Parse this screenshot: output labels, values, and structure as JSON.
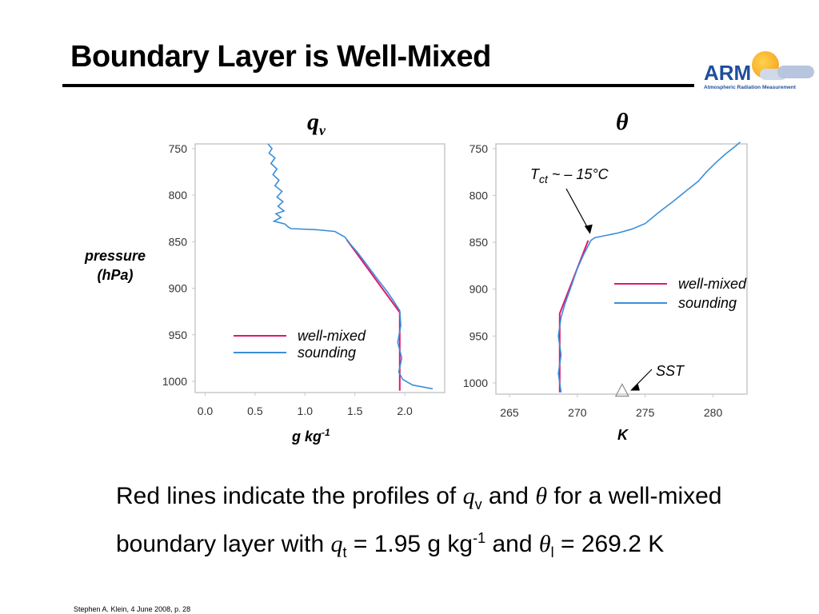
{
  "slide": {
    "title": "Boundary Layer is Well-Mixed",
    "logo_text": "ARM",
    "logo_subtitle": "Atmospheric Radiation Measurement",
    "ylabel_line1": "pressure",
    "ylabel_line2": "(hPa)",
    "caption": {
      "t1": "Red lines indicate the profiles of ",
      "qv": "q",
      "qv_sub": "v",
      "t2": " and ",
      "theta": "θ",
      "t3": " for a well-mixed boundary layer with ",
      "qt": "q",
      "qt_sub": "t",
      "t4": " = 1.95 g kg",
      "sup": "-1",
      "t5": " and ",
      "thetal": "θ",
      "thetal_sub": "l",
      "t6": " = 269.2 K"
    },
    "footer": "Stephen A. Klein, 4 June 2008, p. 28",
    "colors": {
      "well_mixed": "#e0186c",
      "sounding": "#3b8fd9",
      "frame": "#c8c8c8"
    }
  },
  "chart_data": [
    {
      "type": "line",
      "title": "q",
      "title_sub": "v",
      "xlabel": "g kg",
      "xlabel_sup": "-1",
      "ylabel": "pressure (hPa)",
      "xlim": [
        -0.1,
        2.4
      ],
      "ylim": [
        1012,
        745
      ],
      "y_inverted": true,
      "xticks": [
        "0.0",
        "0.5",
        "1.0",
        "1.5",
        "2.0"
      ],
      "xtick_values": [
        0.0,
        0.5,
        1.0,
        1.5,
        2.0
      ],
      "yticks": [
        "750",
        "800",
        "850",
        "900",
        "950",
        "1000"
      ],
      "ytick_values": [
        750,
        800,
        850,
        900,
        950,
        1000
      ],
      "legend": {
        "position": "lower-center",
        "entries": [
          "well-mixed",
          "sounding"
        ]
      },
      "series": [
        {
          "name": "well-mixed",
          "points": [
            [
              1.42,
              848
            ],
            [
              1.95,
              926
            ],
            [
              1.95,
              1010
            ]
          ]
        },
        {
          "name": "sounding",
          "points": [
            [
              0.63,
              745
            ],
            [
              0.67,
              750
            ],
            [
              0.64,
              755
            ],
            [
              0.7,
              760
            ],
            [
              0.66,
              766
            ],
            [
              0.72,
              772
            ],
            [
              0.68,
              778
            ],
            [
              0.74,
              784
            ],
            [
              0.7,
              790
            ],
            [
              0.77,
              796
            ],
            [
              0.72,
              802
            ],
            [
              0.78,
              807
            ],
            [
              0.73,
              812
            ],
            [
              0.79,
              817
            ],
            [
              0.71,
              820
            ],
            [
              0.76,
              824
            ],
            [
              0.69,
              828
            ],
            [
              0.8,
              831
            ],
            [
              0.83,
              834
            ],
            [
              0.86,
              836
            ],
            [
              1.1,
              837
            ],
            [
              1.3,
              839
            ],
            [
              1.4,
              845
            ],
            [
              1.45,
              852
            ],
            [
              1.53,
              862
            ],
            [
              1.6,
              872
            ],
            [
              1.67,
              882
            ],
            [
              1.74,
              892
            ],
            [
              1.82,
              903
            ],
            [
              1.89,
              914
            ],
            [
              1.95,
              924
            ],
            [
              1.96,
              940
            ],
            [
              1.93,
              958
            ],
            [
              1.97,
              975
            ],
            [
              1.94,
              990
            ],
            [
              1.98,
              998
            ],
            [
              2.08,
              1004
            ],
            [
              2.28,
              1008
            ]
          ]
        }
      ]
    },
    {
      "type": "line",
      "title": "θ",
      "xlabel": "K",
      "xlim": [
        264,
        282.5
      ],
      "ylim": [
        1012,
        745
      ],
      "y_inverted": true,
      "xticks": [
        "265",
        "270",
        "275",
        "280"
      ],
      "xtick_values": [
        265,
        270,
        275,
        280
      ],
      "yticks": [
        "750",
        "800",
        "850",
        "900",
        "950",
        "1000"
      ],
      "ytick_values": [
        750,
        800,
        850,
        900,
        950,
        1000
      ],
      "legend": {
        "position": "center-right",
        "entries": [
          "well-mixed",
          "sounding"
        ]
      },
      "annotations": [
        {
          "text": "T",
          "sub": "ct",
          "rest": " ~ – 15°C",
          "x": 271.0,
          "y": 848
        },
        {
          "text": "SST",
          "x": 273.3,
          "y": 1009
        }
      ],
      "sst_marker": {
        "x": 273.3,
        "y": 1009
      },
      "series": [
        {
          "name": "well-mixed",
          "points": [
            [
              270.8,
              848
            ],
            [
              268.7,
              926
            ],
            [
              268.7,
              1010
            ]
          ]
        },
        {
          "name": "sounding",
          "points": [
            [
              268.8,
              1010
            ],
            [
              268.6,
              990
            ],
            [
              268.8,
              970
            ],
            [
              268.6,
              950
            ],
            [
              268.8,
              930
            ],
            [
              269.1,
              915
            ],
            [
              269.6,
              895
            ],
            [
              270.0,
              878
            ],
            [
              270.5,
              862
            ],
            [
              271.0,
              848
            ],
            [
              271.3,
              845
            ],
            [
              272.0,
              843
            ],
            [
              273.0,
              840
            ],
            [
              274.0,
              836
            ],
            [
              275.0,
              830
            ],
            [
              276.0,
              818
            ],
            [
              277.0,
              807
            ],
            [
              277.6,
              800
            ],
            [
              278.2,
              793
            ],
            [
              278.9,
              785
            ],
            [
              279.5,
              775
            ],
            [
              280.2,
              765
            ],
            [
              280.9,
              756
            ],
            [
              281.6,
              748
            ],
            [
              282.0,
              743
            ]
          ]
        }
      ]
    }
  ]
}
